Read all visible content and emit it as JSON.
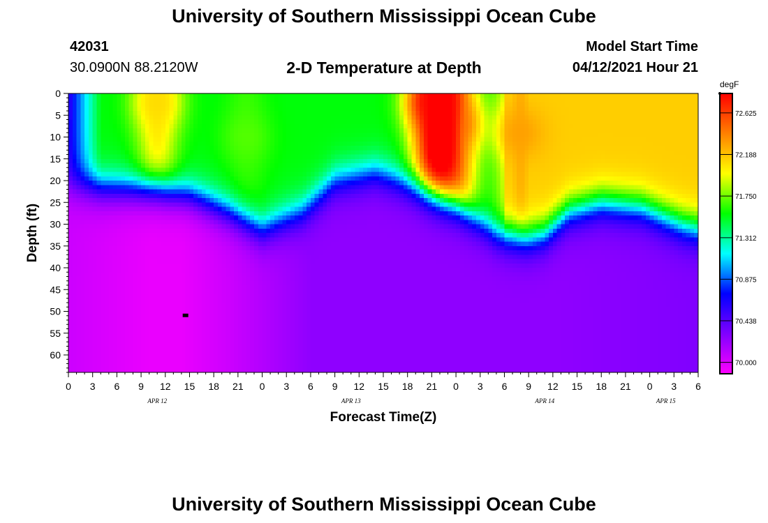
{
  "header": {
    "title": "University of Southern Mississippi Ocean Cube",
    "station_id": "42031",
    "station_coords": "30.0900N  88.2120W",
    "plot_title": "2-D Temperature at Depth",
    "model_start_label": "Model Start Time",
    "model_start_value": "04/12/2021 Hour 21"
  },
  "footer": {
    "title": "University of Southern Mississippi Ocean Cube"
  },
  "chart_data": {
    "type": "heatmap",
    "title": "2-D Temperature at Depth",
    "xlabel": "Forecast Time(Z)",
    "ylabel": "Depth (ft)",
    "xlim_hours": [
      0,
      78
    ],
    "ylim_ft": [
      0,
      64
    ],
    "x_tick_hours": [
      0,
      3,
      6,
      9,
      12,
      15,
      18,
      21,
      24,
      27,
      30,
      33,
      36,
      39,
      42,
      45,
      48,
      51,
      54,
      57,
      60,
      63,
      66,
      69,
      72,
      75,
      78
    ],
    "x_tick_labels": [
      "0",
      "3",
      "6",
      "9",
      "12",
      "15",
      "18",
      "21",
      "0",
      "3",
      "6",
      "9",
      "12",
      "15",
      "18",
      "21",
      "0",
      "3",
      "6",
      "9",
      "12",
      "15",
      "18",
      "21",
      "0",
      "3",
      "6"
    ],
    "date_labels": [
      {
        "hour": 11,
        "text": "APR 12"
      },
      {
        "hour": 35,
        "text": "APR 13"
      },
      {
        "hour": 59,
        "text": "APR 14"
      },
      {
        "hour": 74,
        "text": "APR 15"
      }
    ],
    "y_ticks": [
      0,
      5,
      10,
      15,
      20,
      25,
      30,
      35,
      40,
      45,
      50,
      55,
      60
    ],
    "colorbar": {
      "unit": "degF",
      "min": 69.88,
      "max": 72.83,
      "tick_values": [
        70.0,
        70.438,
        70.875,
        71.312,
        71.75,
        72.188,
        72.625
      ],
      "tick_labels": [
        "70.000",
        "70.438",
        "70.875",
        "71.312",
        "71.750",
        "72.188",
        "72.625"
      ],
      "colors": [
        "#ff00ff",
        "#8000ff",
        "#0000ff",
        "#00ffff",
        "#00ff00",
        "#ffff00",
        "#ff8000",
        "#ff0000"
      ]
    },
    "thermocline_depth_ft": {
      "hours": [
        0,
        6,
        11,
        15,
        20,
        24,
        29,
        33,
        38,
        43,
        48,
        53,
        57,
        59,
        62,
        66,
        71,
        76,
        78
      ],
      "depth": [
        21,
        21.5,
        21.5,
        23,
        27,
        31,
        27,
        20,
        18,
        21,
        25,
        32,
        33,
        32,
        27,
        25,
        26,
        30,
        31
      ]
    },
    "surface_warm_pockets": [
      {
        "hour": 11,
        "depth_ft": 2,
        "temp_f": 72.1
      },
      {
        "hour": 22,
        "depth_ft": 10,
        "temp_f": 71.7
      },
      {
        "hour": 45,
        "depth_ft": 2,
        "temp_f": 72.8
      },
      {
        "hour": 48,
        "depth_ft": 7,
        "temp_f": 72.45
      },
      {
        "hour": 56,
        "depth_ft": 9,
        "temp_f": 72.3
      }
    ],
    "deep_temp_f": {
      "hours": [
        0,
        10,
        14,
        20,
        30,
        45,
        60,
        78
      ],
      "temp": [
        70.05,
        69.95,
        69.95,
        70.05,
        70.25,
        70.25,
        70.25,
        70.3
      ]
    },
    "marker": {
      "hour": 14.5,
      "depth_ft": 51
    }
  }
}
